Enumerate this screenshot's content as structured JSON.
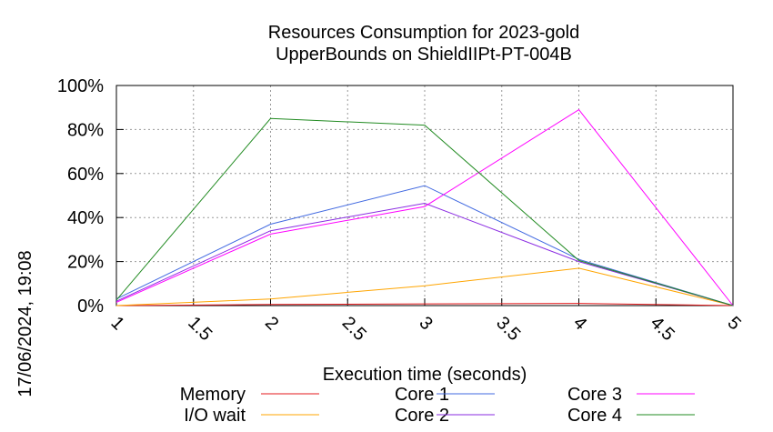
{
  "chart_data": {
    "type": "line",
    "title": "Resources Consumption for 2023-gold",
    "subtitle": "UpperBounds on ShieldIIPt-PT-004B",
    "xlabel": "Execution time (seconds)",
    "ylabel": "",
    "side_label": "17/06/2024, 19:08",
    "xlim": [
      1,
      5
    ],
    "ylim": [
      0,
      100
    ],
    "x_ticks": [
      "1",
      "1.5",
      "2",
      "2.5",
      "3",
      "3.5",
      "4",
      "4.5",
      "5"
    ],
    "y_ticks": [
      "0%",
      "20%",
      "40%",
      "60%",
      "80%",
      "100%"
    ],
    "grid": true,
    "legend_position": "bottom",
    "x": [
      1,
      2,
      3,
      4,
      5
    ],
    "series": [
      {
        "name": "Memory",
        "color": "#e41a1c",
        "values": [
          0,
          0.5,
          0.8,
          1,
          0
        ]
      },
      {
        "name": "I/O wait",
        "color": "#ffa500",
        "values": [
          0,
          3,
          9,
          17,
          0
        ]
      },
      {
        "name": "Core 1",
        "color": "#4169e1",
        "values": [
          3,
          37,
          54.5,
          21,
          0
        ]
      },
      {
        "name": "Core 2",
        "color": "#8a2be2",
        "values": [
          2,
          34,
          46.5,
          20,
          0
        ]
      },
      {
        "name": "Core 3",
        "color": "#ff00ff",
        "values": [
          1.5,
          32.5,
          45,
          89,
          0
        ]
      },
      {
        "name": "Core 4",
        "color": "#228b22",
        "values": [
          2.5,
          85,
          82,
          20.5,
          0
        ]
      }
    ]
  }
}
